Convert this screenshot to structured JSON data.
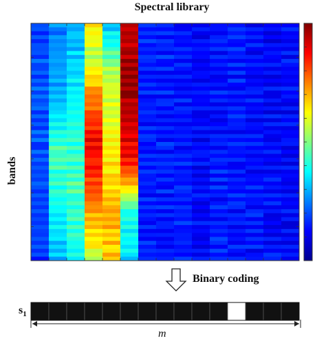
{
  "figure": {
    "title": "Spectral library",
    "y_axis_label": "bands",
    "arrow_label": "Binary coding",
    "code_label_letter": "s",
    "code_label_subscript": "1",
    "length_label": "m"
  },
  "heatmap": {
    "columns": 15,
    "column_profiles": [
      [
        [
          0.0,
          0.2
        ],
        [
          0.5,
          0.2
        ],
        [
          1.0,
          0.18
        ]
      ],
      [
        [
          0.0,
          0.25
        ],
        [
          0.3,
          0.3
        ],
        [
          0.55,
          0.45
        ],
        [
          0.75,
          0.4
        ],
        [
          0.9,
          0.35
        ],
        [
          1.0,
          0.3
        ]
      ],
      [
        [
          0.0,
          0.3
        ],
        [
          0.25,
          0.35
        ],
        [
          0.5,
          0.42
        ],
        [
          0.7,
          0.45
        ],
        [
          0.9,
          0.4
        ],
        [
          1.0,
          0.38
        ]
      ],
      [
        [
          0.0,
          0.65
        ],
        [
          0.15,
          0.55
        ],
        [
          0.3,
          0.75
        ],
        [
          0.5,
          0.88
        ],
        [
          0.7,
          0.8
        ],
        [
          0.9,
          0.65
        ],
        [
          1.0,
          0.55
        ]
      ],
      [
        [
          0.0,
          0.3
        ],
        [
          0.2,
          0.55
        ],
        [
          0.4,
          0.6
        ],
        [
          0.6,
          0.65
        ],
        [
          0.8,
          0.7
        ],
        [
          1.0,
          0.68
        ]
      ],
      [
        [
          0.0,
          0.92
        ],
        [
          0.2,
          0.98
        ],
        [
          0.4,
          0.95
        ],
        [
          0.6,
          0.85
        ],
        [
          0.8,
          0.4
        ],
        [
          1.0,
          0.35
        ]
      ],
      [
        [
          0.0,
          0.15
        ],
        [
          1.0,
          0.15
        ]
      ],
      [
        [
          0.0,
          0.16
        ],
        [
          1.0,
          0.14
        ]
      ],
      [
        [
          0.0,
          0.14
        ],
        [
          1.0,
          0.15
        ]
      ],
      [
        [
          0.0,
          0.13
        ],
        [
          1.0,
          0.12
        ]
      ],
      [
        [
          0.0,
          0.14
        ],
        [
          1.0,
          0.15
        ]
      ],
      [
        [
          0.0,
          0.15
        ],
        [
          1.0,
          0.14
        ]
      ],
      [
        [
          0.0,
          0.13
        ],
        [
          1.0,
          0.14
        ]
      ],
      [
        [
          0.0,
          0.12
        ],
        [
          1.0,
          0.13
        ]
      ],
      [
        [
          0.0,
          0.13
        ],
        [
          1.0,
          0.12
        ]
      ]
    ],
    "colorscale": [
      "#00008f",
      "#0000ff",
      "#0080ff",
      "#00ffff",
      "#80ff80",
      "#ffff00",
      "#ff8000",
      "#ff0000",
      "#800000"
    ]
  },
  "binary_code": {
    "bits": [
      0,
      0,
      0,
      0,
      0,
      0,
      0,
      0,
      0,
      0,
      0,
      1,
      0,
      0,
      0
    ]
  }
}
